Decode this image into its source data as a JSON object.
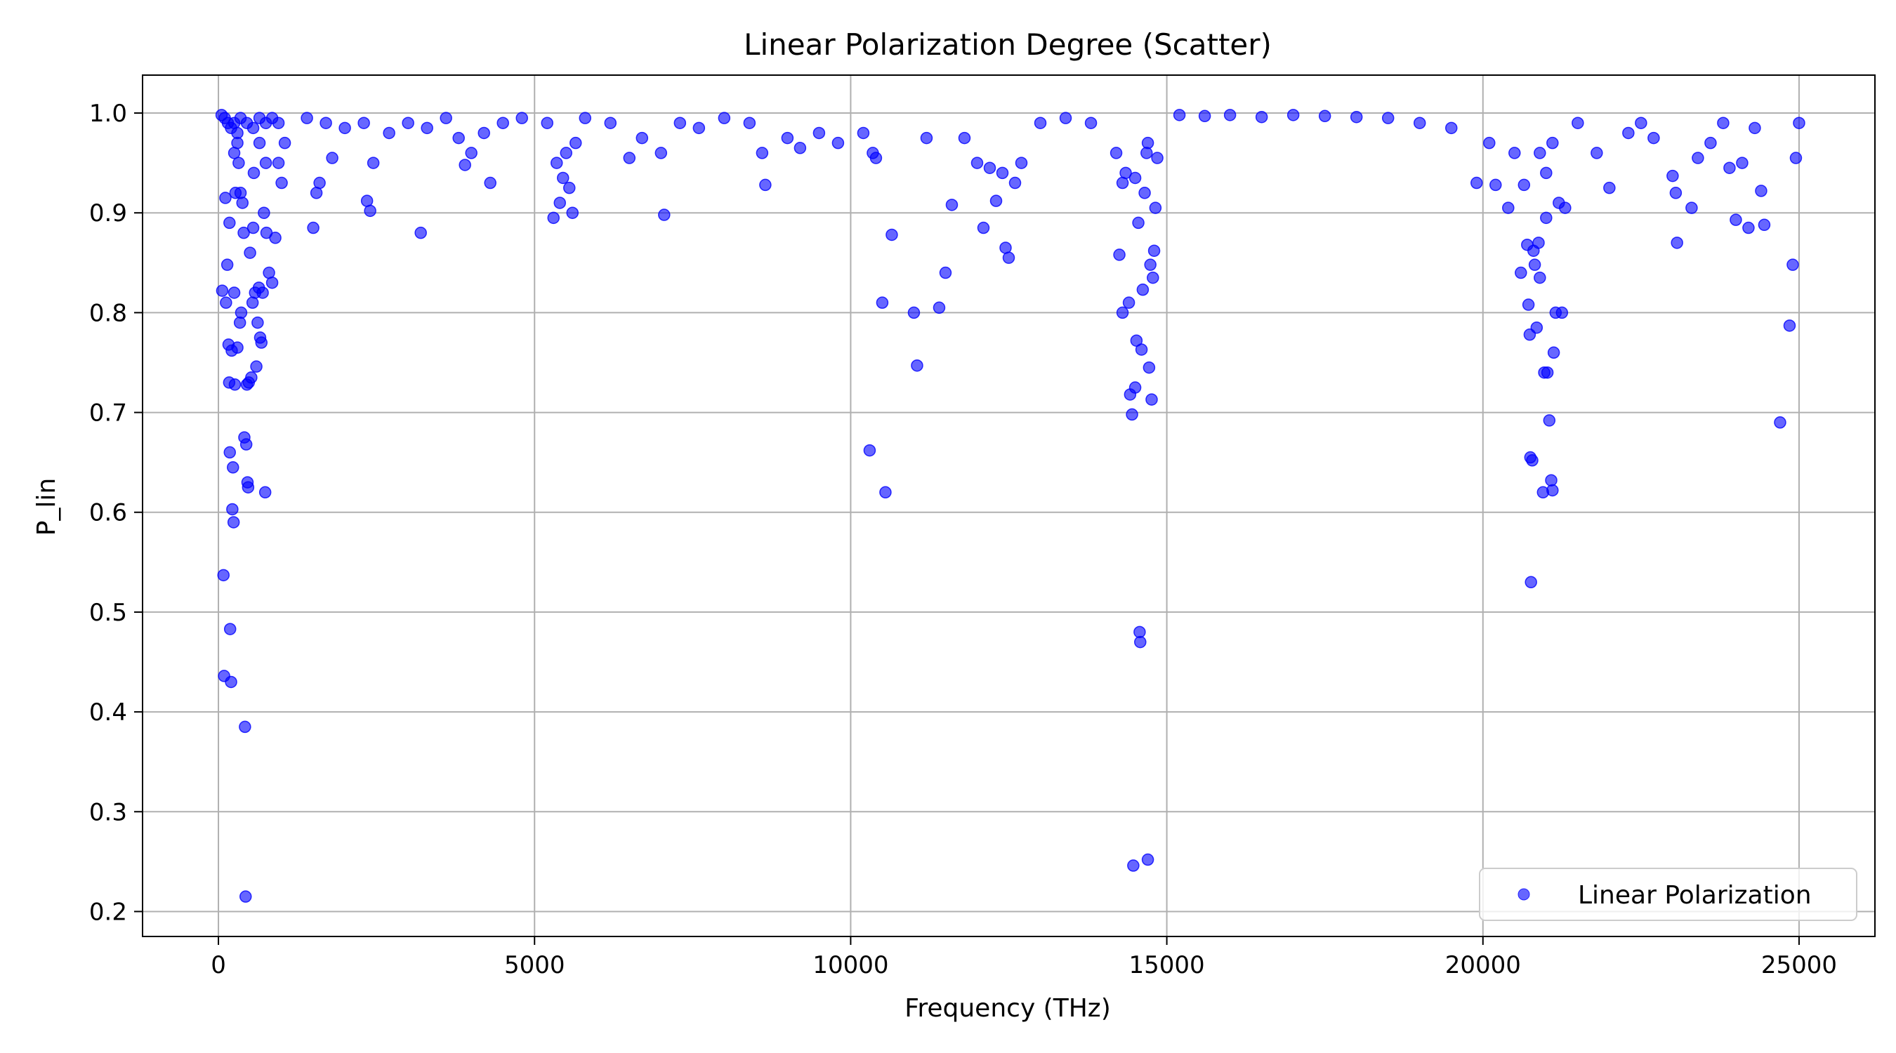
{
  "chart_data": {
    "type": "scatter",
    "title": "Linear Polarization Degree (Scatter)",
    "xlabel": "Frequency (THz)",
    "ylabel": "P_lin",
    "xlim": [
      -1200,
      26200
    ],
    "ylim": [
      0.175,
      1.038
    ],
    "xticks": [
      0,
      5000,
      10000,
      15000,
      20000,
      25000
    ],
    "yticks": [
      0.2,
      0.3,
      0.4,
      0.5,
      0.6,
      0.7,
      0.8,
      0.9,
      1.0
    ],
    "grid": true,
    "legend": {
      "placement": "lower-right",
      "entries": [
        "Linear Polarization"
      ]
    },
    "colors": {
      "series": "#0000ff"
    },
    "series": [
      {
        "name": "Linear Polarization",
        "points": [
          [
            50,
            0.998
          ],
          [
            100,
            0.995
          ],
          [
            150,
            0.99
          ],
          [
            200,
            0.985
          ],
          [
            250,
            0.99
          ],
          [
            300,
            0.98
          ],
          [
            350,
            0.995
          ],
          [
            450,
            0.99
          ],
          [
            550,
            0.985
          ],
          [
            650,
            0.995
          ],
          [
            750,
            0.99
          ],
          [
            850,
            0.995
          ],
          [
            950,
            0.99
          ],
          [
            60,
            0.822
          ],
          [
            80,
            0.537
          ],
          [
            90,
            0.436
          ],
          [
            110,
            0.915
          ],
          [
            120,
            0.81
          ],
          [
            140,
            0.848
          ],
          [
            160,
            0.768
          ],
          [
            170,
            0.73
          ],
          [
            175,
            0.89
          ],
          [
            180,
            0.66
          ],
          [
            185,
            0.483
          ],
          [
            200,
            0.43
          ],
          [
            210,
            0.762
          ],
          [
            220,
            0.603
          ],
          [
            230,
            0.645
          ],
          [
            240,
            0.59
          ],
          [
            250,
            0.82
          ],
          [
            260,
            0.728
          ],
          [
            270,
            0.92
          ],
          [
            300,
            0.765
          ],
          [
            320,
            0.95
          ],
          [
            340,
            0.79
          ],
          [
            360,
            0.8
          ],
          [
            380,
            0.91
          ],
          [
            400,
            0.88
          ],
          [
            410,
            0.675
          ],
          [
            420,
            0.385
          ],
          [
            430,
            0.215
          ],
          [
            440,
            0.668
          ],
          [
            450,
            0.728
          ],
          [
            460,
            0.63
          ],
          [
            470,
            0.625
          ],
          [
            480,
            0.73
          ],
          [
            500,
            0.86
          ],
          [
            520,
            0.735
          ],
          [
            540,
            0.81
          ],
          [
            560,
            0.94
          ],
          [
            580,
            0.82
          ],
          [
            600,
            0.746
          ],
          [
            620,
            0.79
          ],
          [
            640,
            0.825
          ],
          [
            660,
            0.775
          ],
          [
            680,
            0.77
          ],
          [
            700,
            0.82
          ],
          [
            720,
            0.9
          ],
          [
            740,
            0.62
          ],
          [
            760,
            0.88
          ],
          [
            800,
            0.84
          ],
          [
            850,
            0.83
          ],
          [
            900,
            0.875
          ],
          [
            950,
            0.95
          ],
          [
            1000,
            0.93
          ],
          [
            1050,
            0.97
          ],
          [
            350,
            0.92
          ],
          [
            550,
            0.885
          ],
          [
            650,
            0.97
          ],
          [
            750,
            0.95
          ],
          [
            300,
            0.97
          ],
          [
            250,
            0.96
          ],
          [
            1500,
            0.885
          ],
          [
            1550,
            0.92
          ],
          [
            1600,
            0.93
          ],
          [
            1800,
            0.955
          ],
          [
            2350,
            0.912
          ],
          [
            2400,
            0.902
          ],
          [
            2450,
            0.95
          ],
          [
            3200,
            0.88
          ],
          [
            3900,
            0.948
          ],
          [
            4300,
            0.93
          ],
          [
            1400,
            0.995
          ],
          [
            1700,
            0.99
          ],
          [
            2000,
            0.985
          ],
          [
            2300,
            0.99
          ],
          [
            2700,
            0.98
          ],
          [
            3000,
            0.99
          ],
          [
            3300,
            0.985
          ],
          [
            3600,
            0.995
          ],
          [
            3800,
            0.975
          ],
          [
            4000,
            0.96
          ],
          [
            4200,
            0.98
          ],
          [
            4500,
            0.99
          ],
          [
            4800,
            0.995
          ],
          [
            5300,
            0.895
          ],
          [
            5400,
            0.91
          ],
          [
            5450,
            0.935
          ],
          [
            5500,
            0.96
          ],
          [
            5550,
            0.925
          ],
          [
            5600,
            0.9
          ],
          [
            5650,
            0.97
          ],
          [
            5350,
            0.95
          ],
          [
            5200,
            0.99
          ],
          [
            5800,
            0.995
          ],
          [
            6200,
            0.99
          ],
          [
            6500,
            0.955
          ],
          [
            6700,
            0.975
          ],
          [
            7000,
            0.96
          ],
          [
            7050,
            0.898
          ],
          [
            7300,
            0.99
          ],
          [
            7600,
            0.985
          ],
          [
            8000,
            0.995
          ],
          [
            8400,
            0.99
          ],
          [
            8600,
            0.96
          ],
          [
            8650,
            0.928
          ],
          [
            9000,
            0.975
          ],
          [
            9200,
            0.965
          ],
          [
            9500,
            0.98
          ],
          [
            9800,
            0.97
          ],
          [
            10200,
            0.98
          ],
          [
            10300,
            0.662
          ],
          [
            10350,
            0.96
          ],
          [
            10400,
            0.955
          ],
          [
            10500,
            0.81
          ],
          [
            10550,
            0.62
          ],
          [
            10650,
            0.878
          ],
          [
            11000,
            0.8
          ],
          [
            11050,
            0.747
          ],
          [
            11200,
            0.975
          ],
          [
            11400,
            0.805
          ],
          [
            11500,
            0.84
          ],
          [
            11600,
            0.908
          ],
          [
            11800,
            0.975
          ],
          [
            12000,
            0.95
          ],
          [
            12100,
            0.885
          ],
          [
            12200,
            0.945
          ],
          [
            12300,
            0.912
          ],
          [
            12400,
            0.94
          ],
          [
            12450,
            0.865
          ],
          [
            12500,
            0.855
          ],
          [
            12600,
            0.93
          ],
          [
            12700,
            0.95
          ],
          [
            13000,
            0.99
          ],
          [
            13400,
            0.995
          ],
          [
            13800,
            0.99
          ],
          [
            14200,
            0.96
          ],
          [
            14250,
            0.858
          ],
          [
            14300,
            0.8
          ],
          [
            14350,
            0.94
          ],
          [
            14400,
            0.81
          ],
          [
            14420,
            0.718
          ],
          [
            14450,
            0.698
          ],
          [
            14470,
            0.246
          ],
          [
            14500,
            0.725
          ],
          [
            14520,
            0.772
          ],
          [
            14550,
            0.89
          ],
          [
            14570,
            0.48
          ],
          [
            14580,
            0.47
          ],
          [
            14600,
            0.763
          ],
          [
            14620,
            0.823
          ],
          [
            14650,
            0.92
          ],
          [
            14680,
            0.96
          ],
          [
            14700,
            0.252
          ],
          [
            14720,
            0.745
          ],
          [
            14740,
            0.848
          ],
          [
            14760,
            0.713
          ],
          [
            14780,
            0.835
          ],
          [
            14800,
            0.862
          ],
          [
            14820,
            0.905
          ],
          [
            14850,
            0.955
          ],
          [
            14300,
            0.93
          ],
          [
            14500,
            0.935
          ],
          [
            14700,
            0.97
          ],
          [
            15200,
            0.998
          ],
          [
            15600,
            0.997
          ],
          [
            16000,
            0.998
          ],
          [
            16500,
            0.996
          ],
          [
            17000,
            0.998
          ],
          [
            17500,
            0.997
          ],
          [
            18000,
            0.996
          ],
          [
            18500,
            0.995
          ],
          [
            19000,
            0.99
          ],
          [
            19500,
            0.985
          ],
          [
            19900,
            0.93
          ],
          [
            20100,
            0.97
          ],
          [
            20200,
            0.928
          ],
          [
            20400,
            0.905
          ],
          [
            20500,
            0.96
          ],
          [
            20600,
            0.84
          ],
          [
            20650,
            0.928
          ],
          [
            20700,
            0.868
          ],
          [
            20720,
            0.808
          ],
          [
            20740,
            0.778
          ],
          [
            20750,
            0.655
          ],
          [
            20760,
            0.53
          ],
          [
            20780,
            0.652
          ],
          [
            20800,
            0.862
          ],
          [
            20820,
            0.848
          ],
          [
            20850,
            0.785
          ],
          [
            20880,
            0.87
          ],
          [
            20900,
            0.835
          ],
          [
            20950,
            0.62
          ],
          [
            20970,
            0.74
          ],
          [
            21000,
            0.895
          ],
          [
            21020,
            0.74
          ],
          [
            21050,
            0.692
          ],
          [
            21080,
            0.632
          ],
          [
            21100,
            0.622
          ],
          [
            21120,
            0.76
          ],
          [
            21150,
            0.8
          ],
          [
            21200,
            0.91
          ],
          [
            21250,
            0.8
          ],
          [
            21300,
            0.905
          ],
          [
            20900,
            0.96
          ],
          [
            21000,
            0.94
          ],
          [
            21100,
            0.97
          ],
          [
            21500,
            0.99
          ],
          [
            21800,
            0.96
          ],
          [
            22000,
            0.925
          ],
          [
            22300,
            0.98
          ],
          [
            22700,
            0.975
          ],
          [
            23000,
            0.937
          ],
          [
            23050,
            0.92
          ],
          [
            23070,
            0.87
          ],
          [
            23300,
            0.905
          ],
          [
            23400,
            0.955
          ],
          [
            23600,
            0.97
          ],
          [
            23900,
            0.945
          ],
          [
            24000,
            0.893
          ],
          [
            24100,
            0.95
          ],
          [
            24200,
            0.885
          ],
          [
            24400,
            0.922
          ],
          [
            24450,
            0.888
          ],
          [
            24700,
            0.69
          ],
          [
            24850,
            0.787
          ],
          [
            24900,
            0.848
          ],
          [
            24950,
            0.955
          ],
          [
            25000,
            0.99
          ],
          [
            22500,
            0.99
          ],
          [
            23800,
            0.99
          ],
          [
            24300,
            0.985
          ]
        ]
      }
    ]
  }
}
